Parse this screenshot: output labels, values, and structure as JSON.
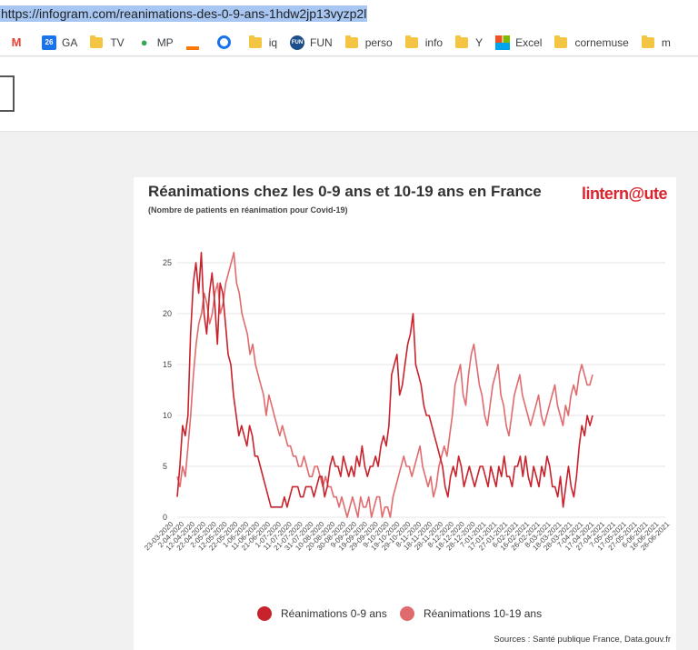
{
  "browser": {
    "url": "https://infogram.com/reanimations-des-0-9-ans-1hdw2jp13vyzp2l"
  },
  "bookmarks": [
    {
      "label": "",
      "icon": "gmail-icon",
      "color": "#ea4335"
    },
    {
      "label": "GA",
      "icon": "calendar-icon",
      "color": "#1a73e8"
    },
    {
      "label": "TV",
      "icon": "folder-icon",
      "color": "#f4c542"
    },
    {
      "label": "MP",
      "icon": "maps-icon",
      "color": "#34a853"
    },
    {
      "label": "",
      "icon": "orange-icon",
      "color": "#ff7900"
    },
    {
      "label": "",
      "icon": "c-icon",
      "color": "#1a73e8"
    },
    {
      "label": "iq",
      "icon": "folder-icon",
      "color": "#f4c542"
    },
    {
      "label": "FUN",
      "icon": "fun-icon",
      "color": "#1d4e89"
    },
    {
      "label": "perso",
      "icon": "folder-icon",
      "color": "#f4c542"
    },
    {
      "label": "info",
      "icon": "folder-icon",
      "color": "#f4c542"
    },
    {
      "label": "Y",
      "icon": "folder-icon",
      "color": "#f4c542"
    },
    {
      "label": "Excel",
      "icon": "microsoft-icon",
      "color": "#f25022"
    },
    {
      "label": "cornemuse",
      "icon": "folder-icon",
      "color": "#f4c542"
    },
    {
      "label": "m",
      "icon": "folder-icon",
      "color": "#f4c542"
    }
  ],
  "card": {
    "title": "Réanimations chez les 0-9 ans et 10-19 ans en France",
    "subtitle": "(Nombre de patients en réanimation pour Covid-19)",
    "logo": "linternaute",
    "sources": "Sources : Santé publique France, Data.gouv.fr"
  },
  "chart_data": {
    "type": "line",
    "title": "Réanimations chez les 0-9 ans et 10-19 ans en France",
    "subtitle": "(Nombre de patients en réanimation pour Covid-19)",
    "ylim": [
      0,
      25
    ],
    "yticks": [
      0,
      5,
      10,
      15,
      20,
      25
    ],
    "grid": true,
    "legend_position": "bottom",
    "x_labels": [
      "23-03-2020",
      "2-04-2020",
      "12-04-2020",
      "22-04-2020",
      "2-05-2020",
      "12-05-2020",
      "22-05-2020",
      "1-06-2020",
      "11-06-2020",
      "21-06-2020",
      "1-07-2020",
      "11-07-2020",
      "21-07-2020",
      "31-07-2020",
      "10-08-2020",
      "20-08-2020",
      "30-08-2020",
      "9-09-2020",
      "19-09-2020",
      "29-09-2020",
      "9-10-2020",
      "19-10-2020",
      "29-10-2020",
      "8-11-2020",
      "18-11-2020",
      "28-11-2020",
      "8-12-2020",
      "18-12-2020",
      "28-12-2020",
      "7-01-2021",
      "17-01-2021",
      "27-01-2021",
      "6-02-2021",
      "16-02-2021",
      "26-02-2021",
      "8-03-2021",
      "18-03-2021",
      "28-03-2021",
      "7-04-2021",
      "17-04-2021",
      "27-04-2021",
      "7-05-2021",
      "17-05-2021",
      "27-05-2021",
      "6-06-2021",
      "16-06-2021",
      "26-06-2021"
    ],
    "series": [
      {
        "name": "Réanimations 0-9 ans",
        "color": "#c8232c",
        "values": [
          2,
          5,
          9,
          8,
          10,
          18,
          23,
          25,
          22,
          26,
          20,
          18,
          22,
          24,
          21,
          17,
          23,
          22,
          19,
          16,
          15,
          12,
          10,
          8,
          9,
          8,
          7,
          9,
          8,
          6,
          6,
          5,
          4,
          3,
          2,
          1,
          1,
          1,
          1,
          1,
          2,
          1,
          2,
          3,
          3,
          3,
          2,
          2,
          3,
          3,
          3,
          2,
          3,
          4,
          4,
          2,
          3,
          5,
          6,
          5,
          5,
          4,
          6,
          5,
          4,
          5,
          4,
          6,
          5,
          7,
          5,
          4,
          5,
          5,
          6,
          5,
          7,
          8,
          7,
          9,
          14,
          15,
          16,
          12,
          13,
          15,
          17,
          18,
          20,
          15,
          14,
          13,
          11,
          10,
          10,
          9,
          8,
          7,
          6,
          5,
          3,
          2,
          4,
          5,
          4,
          6,
          5,
          3,
          4,
          5,
          4,
          3,
          4,
          5,
          5,
          4,
          3,
          5,
          4,
          3,
          5,
          4,
          6,
          4,
          4,
          3,
          5,
          5,
          6,
          4,
          6,
          4,
          3,
          5,
          4,
          3,
          5,
          4,
          6,
          5,
          3,
          3,
          2,
          4,
          1,
          3,
          5,
          3,
          2,
          4,
          7,
          9,
          8,
          10,
          9,
          10
        ]
      },
      {
        "name": "Réanimations 10-19 ans",
        "color": "#e06b6e",
        "values": [
          4,
          3,
          5,
          4,
          7,
          10,
          14,
          17,
          19,
          20,
          22,
          21,
          19,
          20,
          22,
          23,
          20,
          21,
          23,
          24,
          25,
          26,
          23,
          22,
          20,
          19,
          18,
          16,
          17,
          15,
          14,
          13,
          12,
          10,
          12,
          11,
          10,
          9,
          8,
          9,
          8,
          7,
          7,
          6,
          6,
          5,
          5,
          6,
          5,
          4,
          4,
          5,
          5,
          4,
          3,
          4,
          3,
          3,
          2,
          2,
          1,
          2,
          1,
          0,
          1,
          2,
          1,
          0,
          2,
          1,
          1,
          2,
          0,
          1,
          2,
          2,
          0,
          1,
          1,
          0,
          2,
          3,
          4,
          5,
          6,
          5,
          5,
          4,
          5,
          6,
          7,
          5,
          4,
          3,
          4,
          2,
          3,
          5,
          6,
          7,
          6,
          8,
          10,
          13,
          14,
          15,
          12,
          11,
          14,
          16,
          17,
          15,
          13,
          12,
          10,
          9,
          11,
          13,
          14,
          15,
          12,
          11,
          9,
          8,
          10,
          12,
          13,
          14,
          12,
          11,
          10,
          9,
          10,
          11,
          12,
          10,
          9,
          10,
          11,
          12,
          13,
          11,
          10,
          9,
          11,
          10,
          12,
          13,
          12,
          14,
          15,
          14,
          13,
          13,
          14
        ]
      }
    ]
  }
}
